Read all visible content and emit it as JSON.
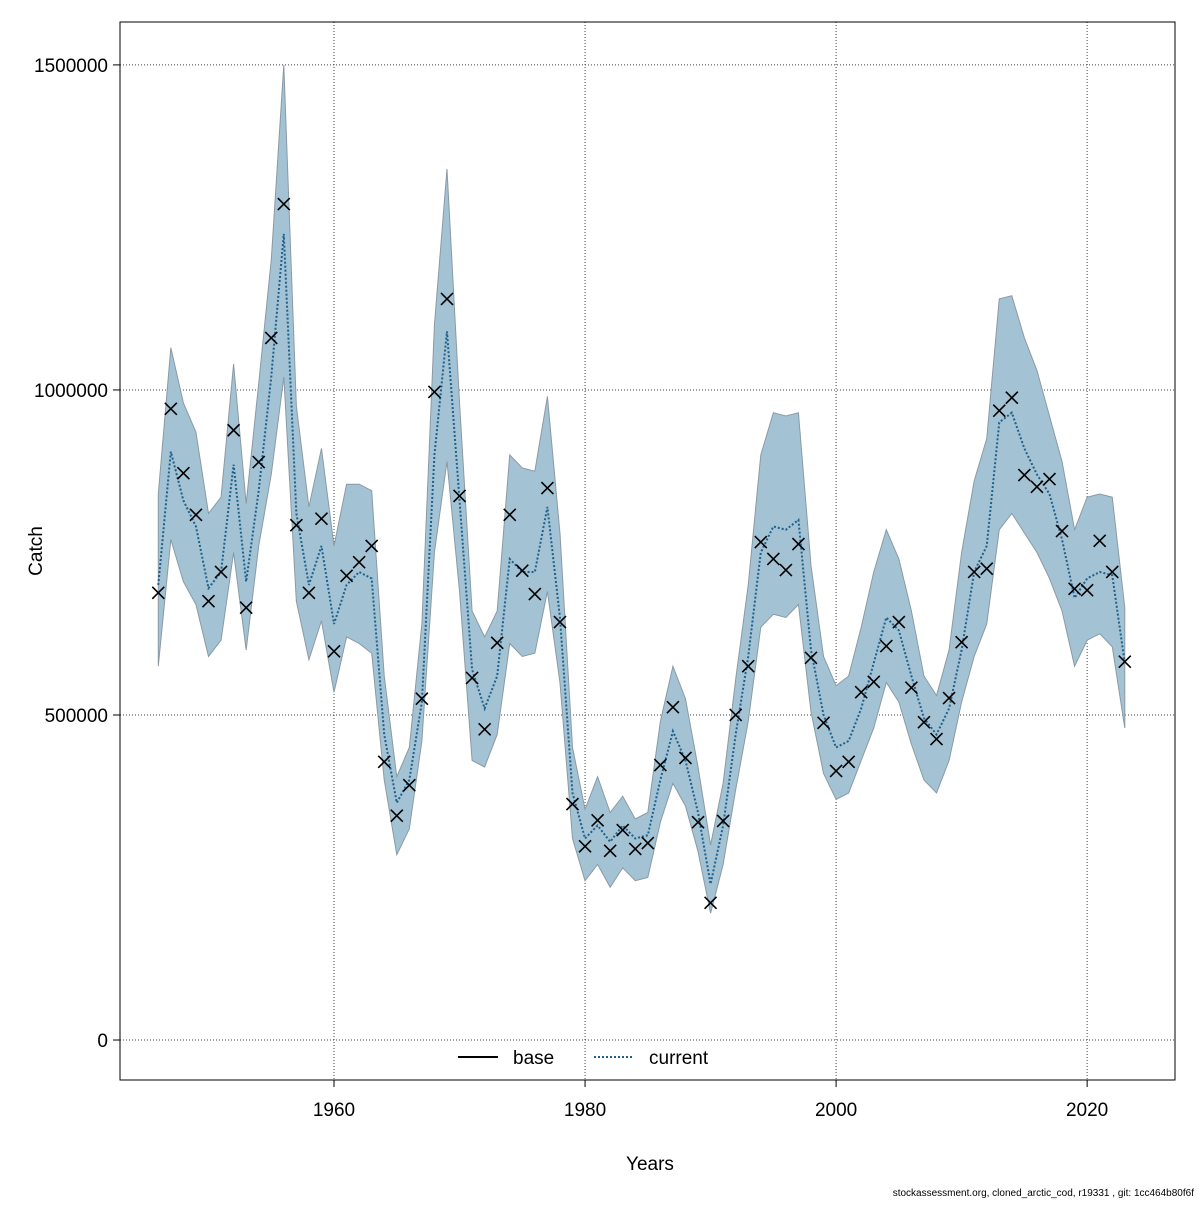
{
  "chart_data": {
    "type": "line",
    "xlabel": "Years",
    "ylabel": "Catch",
    "footnote": "stockassessment.org, cloned_arctic_cod, r19331 , git: 1cc464b80f6f",
    "x": [
      1946,
      1947,
      1948,
      1949,
      1950,
      1951,
      1952,
      1953,
      1954,
      1955,
      1956,
      1957,
      1958,
      1959,
      1960,
      1961,
      1962,
      1963,
      1964,
      1965,
      1966,
      1967,
      1968,
      1969,
      1970,
      1971,
      1972,
      1973,
      1974,
      1975,
      1976,
      1977,
      1978,
      1979,
      1980,
      1981,
      1982,
      1983,
      1984,
      1985,
      1986,
      1987,
      1988,
      1989,
      1990,
      1991,
      1992,
      1993,
      1994,
      1995,
      1996,
      1997,
      1998,
      1999,
      2000,
      2001,
      2002,
      2003,
      2004,
      2005,
      2006,
      2007,
      2008,
      2009,
      2010,
      2011,
      2012,
      2013,
      2014,
      2015,
      2016,
      2017,
      2018,
      2019,
      2020,
      2021,
      2022,
      2023
    ],
    "observed": [
      688000,
      971000,
      872000,
      808000,
      675000,
      720000,
      938000,
      665000,
      889000,
      1080000,
      1286000,
      792000,
      688000,
      802000,
      598000,
      714000,
      735000,
      760000,
      428000,
      345000,
      392000,
      525000,
      997000,
      1140000,
      837000,
      557000,
      478000,
      611000,
      808000,
      722000,
      686000,
      849000,
      643000,
      363000,
      298000,
      338000,
      291000,
      323000,
      294000,
      303000,
      423000,
      512000,
      434000,
      335000,
      211000,
      337000,
      500000,
      575000,
      766000,
      740000,
      723000,
      763000,
      588000,
      488000,
      414000,
      428000,
      535000,
      551000,
      606000,
      643000,
      542000,
      489000,
      463000,
      526000,
      612000,
      720000,
      725000,
      968000,
      988000,
      869000,
      851000,
      863000,
      783000,
      694000,
      692000,
      768000,
      720000,
      582000
    ],
    "observed_color": "#000000",
    "series": [
      {
        "name": "current",
        "color": "#1f5f8b",
        "band_color": "#a3c3d4",
        "values": [
          700000,
          905000,
          830000,
          790000,
          695000,
          720000,
          885000,
          705000,
          845000,
          1020000,
          1240000,
          810000,
          700000,
          760000,
          640000,
          700000,
          720000,
          710000,
          470000,
          365000,
          400000,
          520000,
          900000,
          1090000,
          830000,
          570000,
          510000,
          560000,
          740000,
          720000,
          720000,
          820000,
          650000,
          380000,
          310000,
          330000,
          305000,
          330000,
          310000,
          315000,
          400000,
          475000,
          430000,
          350000,
          240000,
          330000,
          470000,
          590000,
          750000,
          790000,
          785000,
          800000,
          600000,
          500000,
          450000,
          460000,
          510000,
          580000,
          650000,
          630000,
          560000,
          495000,
          470000,
          510000,
          600000,
          720000,
          760000,
          950000,
          965000,
          910000,
          870000,
          840000,
          770000,
          680000,
          710000,
          720000,
          715000,
          580000
        ],
        "lower": [
          575000,
          770000,
          705000,
          670000,
          590000,
          615000,
          750000,
          600000,
          760000,
          870000,
          1020000,
          675000,
          585000,
          645000,
          535000,
          620000,
          610000,
          595000,
          400000,
          285000,
          325000,
          460000,
          750000,
          890000,
          690000,
          430000,
          420000,
          470000,
          610000,
          590000,
          595000,
          690000,
          550000,
          310000,
          245000,
          270000,
          235000,
          265000,
          245000,
          250000,
          335000,
          395000,
          360000,
          290000,
          195000,
          270000,
          385000,
          490000,
          635000,
          655000,
          650000,
          670000,
          505000,
          410000,
          370000,
          380000,
          430000,
          480000,
          550000,
          520000,
          455000,
          400000,
          380000,
          430000,
          520000,
          590000,
          640000,
          785000,
          810000,
          780000,
          750000,
          710000,
          660000,
          575000,
          615000,
          625000,
          605000,
          480000
        ],
        "upper": [
          840000,
          1065000,
          980000,
          935000,
          810000,
          835000,
          1040000,
          825000,
          1010000,
          1200000,
          1500000,
          975000,
          820000,
          910000,
          760000,
          855000,
          855000,
          845000,
          560000,
          405000,
          450000,
          640000,
          1100000,
          1340000,
          980000,
          660000,
          620000,
          660000,
          900000,
          880000,
          875000,
          990000,
          780000,
          450000,
          355000,
          405000,
          350000,
          375000,
          340000,
          350000,
          490000,
          575000,
          525000,
          420000,
          300000,
          395000,
          555000,
          700000,
          900000,
          965000,
          960000,
          965000,
          730000,
          590000,
          545000,
          560000,
          635000,
          720000,
          785000,
          740000,
          660000,
          560000,
          530000,
          600000,
          750000,
          860000,
          925000,
          1140000,
          1145000,
          1080000,
          1030000,
          960000,
          890000,
          785000,
          835000,
          840000,
          835000,
          665000
        ]
      }
    ],
    "legend": [
      {
        "name": "base",
        "color": "#000000",
        "dash": "solid"
      },
      {
        "name": "current",
        "color": "#1f5f8b",
        "dash": "dotted"
      }
    ],
    "legend_position": "bottom",
    "xlim": [
      1942.95,
      2027
    ],
    "ylim": [
      -61500,
      1566000
    ],
    "xticks": [
      1960,
      1980,
      2000,
      2020
    ],
    "yticks": [
      0,
      500000,
      1000000,
      1500000
    ],
    "grid": true
  }
}
